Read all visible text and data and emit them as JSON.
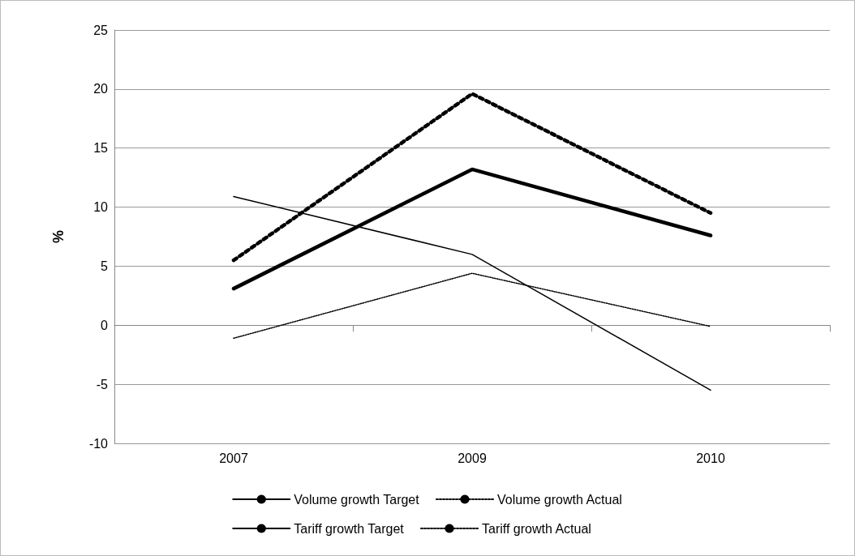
{
  "chart_data": {
    "type": "line",
    "ylabel": "%",
    "categories": [
      "2007",
      "2009",
      "2010"
    ],
    "series": [
      {
        "name": "Volume growth Target",
        "color": "#000000",
        "line_style": "solid",
        "values": [
          10.9,
          6.0,
          -5.5
        ]
      },
      {
        "name": "Volume growth Actual",
        "color": "#000000",
        "line_style": "dotted",
        "values": [
          -1.1,
          4.4,
          -0.1
        ]
      },
      {
        "name": "Tariff growth Target",
        "color": "#000000",
        "line_style": "solid",
        "values": [
          3.1,
          13.2,
          7.6
        ]
      },
      {
        "name": "Tariff growth Actual",
        "color": "#000000",
        "line_style": "dotted",
        "values": [
          5.5,
          19.6,
          9.5
        ]
      }
    ],
    "ylim": [
      -10,
      25
    ],
    "yticks": [
      -10,
      -5,
      0,
      5,
      10,
      15,
      20,
      25
    ],
    "grid": "y",
    "legend": "bottom",
    "marker": "none"
  }
}
